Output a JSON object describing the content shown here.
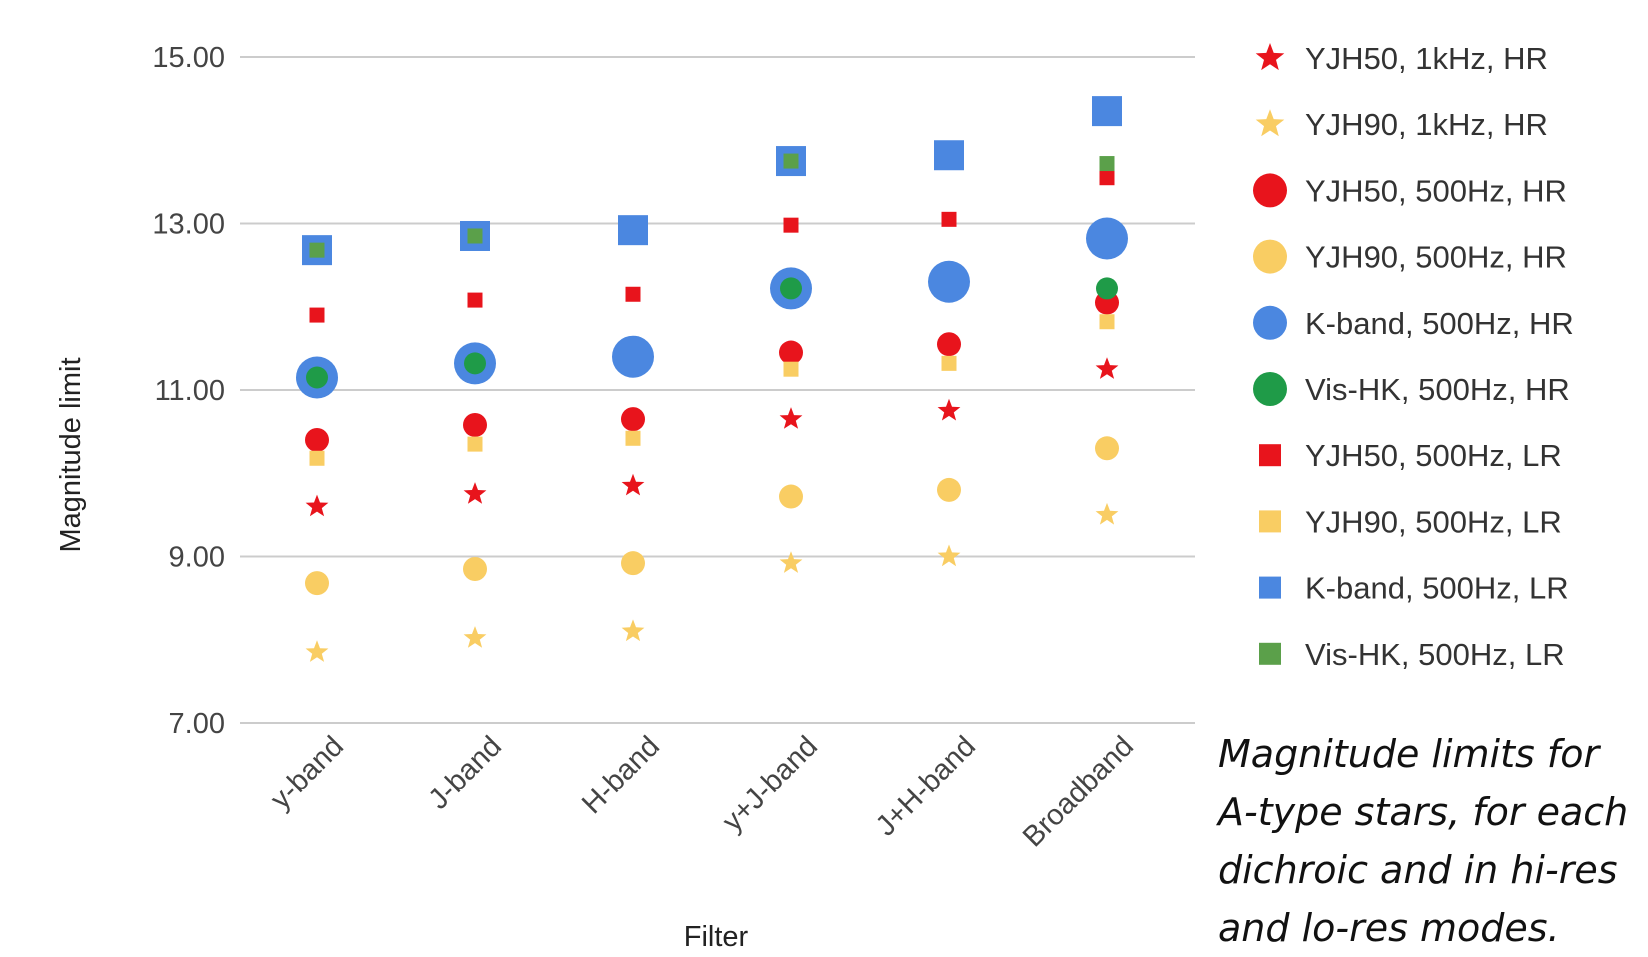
{
  "chart_data": {
    "type": "scatter",
    "categories": [
      "y-band",
      "J-band",
      "H-band",
      "y+J-band",
      "J+H-band",
      "Broadband"
    ],
    "xlabel": "Filter",
    "ylabel": "Magnitude limit",
    "ylim": [
      7,
      15
    ],
    "yticks": [
      "7.00",
      "9.00",
      "11.00",
      "13.00",
      "15.00"
    ],
    "grid": true,
    "legend_position": "right",
    "series": [
      {
        "name": "YJH50, 1kHz, HR",
        "marker": "star",
        "size": "small",
        "color": "#e8141c",
        "values": [
          9.6,
          9.75,
          9.85,
          10.65,
          10.75,
          11.25
        ]
      },
      {
        "name": "YJH90, 1kHz, HR",
        "marker": "star",
        "size": "small",
        "color": "#f9cd63",
        "values": [
          7.85,
          8.02,
          8.1,
          8.92,
          9.0,
          9.5
        ]
      },
      {
        "name": "YJH50, 500Hz, HR",
        "marker": "circle",
        "size": "medium",
        "color": "#e8141c",
        "values": [
          10.4,
          10.58,
          10.65,
          11.45,
          11.55,
          12.05
        ]
      },
      {
        "name": "YJH90, 500Hz, HR",
        "marker": "circle",
        "size": "medium",
        "color": "#f9cd63",
        "values": [
          8.68,
          8.85,
          8.92,
          9.72,
          9.8,
          10.3
        ]
      },
      {
        "name": "K-band, 500Hz, HR",
        "marker": "circle",
        "size": "large",
        "color": "#4b87e0",
        "values": [
          11.15,
          11.32,
          11.4,
          12.22,
          12.3,
          12.82
        ]
      },
      {
        "name": "Vis-HK, 500Hz, HR",
        "marker": "circle",
        "size": "small",
        "color": "#1f9b48",
        "values": [
          11.15,
          11.32,
          null,
          12.22,
          null,
          12.22
        ]
      },
      {
        "name": "YJH50, 500Hz, LR",
        "marker": "square",
        "size": "small",
        "color": "#e8141c",
        "values": [
          11.9,
          12.08,
          12.15,
          12.98,
          13.05,
          13.55
        ]
      },
      {
        "name": "YJH90, 500Hz, LR",
        "marker": "square",
        "size": "small",
        "color": "#f9cd63",
        "values": [
          10.18,
          10.35,
          10.42,
          11.25,
          11.32,
          11.82
        ]
      },
      {
        "name": "K-band, 500Hz, LR",
        "marker": "square",
        "size": "large",
        "color": "#4b87e0",
        "values": [
          12.68,
          12.85,
          12.92,
          13.75,
          13.82,
          14.35
        ]
      },
      {
        "name": "Vis-HK, 500Hz, LR",
        "marker": "square",
        "size": "small",
        "color": "#5ba04a",
        "values": [
          12.68,
          12.85,
          null,
          13.75,
          null,
          13.72
        ]
      }
    ]
  },
  "caption": "Magnitude limits for A-type stars, for each dichroic and in hi-res and lo-res modes."
}
